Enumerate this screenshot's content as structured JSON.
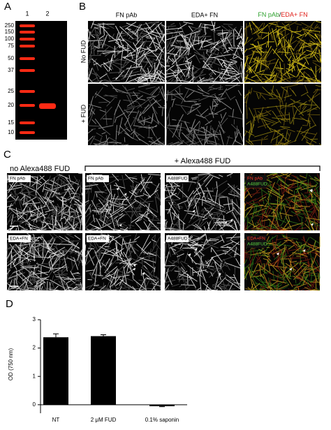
{
  "panel_a": {
    "label": "A",
    "lanes": [
      "1",
      "2"
    ],
    "markers": [
      250,
      150,
      100,
      75,
      50,
      37,
      25,
      20,
      15,
      10
    ]
  },
  "panel_b": {
    "label": "B",
    "columns": [
      "FN pAb",
      "EDA+ FN"
    ],
    "merge": {
      "green": "FN pAb",
      "separator": "/",
      "red": "EDA+ FN"
    },
    "rows": [
      "No FUD",
      "+ FUD"
    ]
  },
  "panel_c": {
    "label": "C",
    "group_left": "no Alexa488 FUD",
    "group_right": "+ Alexa488 FUD",
    "rows": [
      [
        "FN pAb",
        "FN pAb",
        "A488FUD",
        {
          "red": "FN pAb",
          "green": "A488FUD"
        }
      ],
      [
        "EDA+FN",
        "EDA+FN",
        "A488FUD",
        {
          "red": "EDA+FN",
          "green": "A488FUD"
        }
      ]
    ]
  },
  "chart_data": {
    "type": "bar",
    "panel_label": "D",
    "ylabel": "OD (750 nm)",
    "categories": [
      "NT",
      "2 μM FUD",
      "0.1% saponin"
    ],
    "values": [
      2.38,
      2.42,
      -0.05
    ],
    "errors": [
      0.12,
      0.05,
      0.02
    ],
    "color": "#000000",
    "ylim": [
      -0.3,
      3
    ],
    "yticks": [
      0,
      1,
      2,
      3
    ]
  }
}
